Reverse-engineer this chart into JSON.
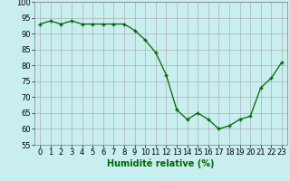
{
  "x": [
    0,
    1,
    2,
    3,
    4,
    5,
    6,
    7,
    8,
    9,
    10,
    11,
    12,
    13,
    14,
    15,
    16,
    17,
    18,
    19,
    20,
    21,
    22,
    23
  ],
  "y": [
    93,
    94,
    93,
    94,
    93,
    93,
    93,
    93,
    93,
    91,
    88,
    84,
    77,
    66,
    63,
    65,
    63,
    60,
    61,
    63,
    64,
    73,
    76,
    81
  ],
  "line_color": "#006600",
  "marker_color": "#006600",
  "background_color": "#c8eef0",
  "grid_color": "#b0b0b0",
  "grid_color_minor": "#d0d0d0",
  "xlabel": "Humidité relative (%)",
  "xlabel_color": "#006600",
  "ylim": [
    55,
    100
  ],
  "yticks": [
    55,
    60,
    65,
    70,
    75,
    80,
    85,
    90,
    95,
    100
  ],
  "xlim": [
    -0.5,
    23.5
  ],
  "xlabel_fontsize": 7,
  "tick_fontsize": 6
}
